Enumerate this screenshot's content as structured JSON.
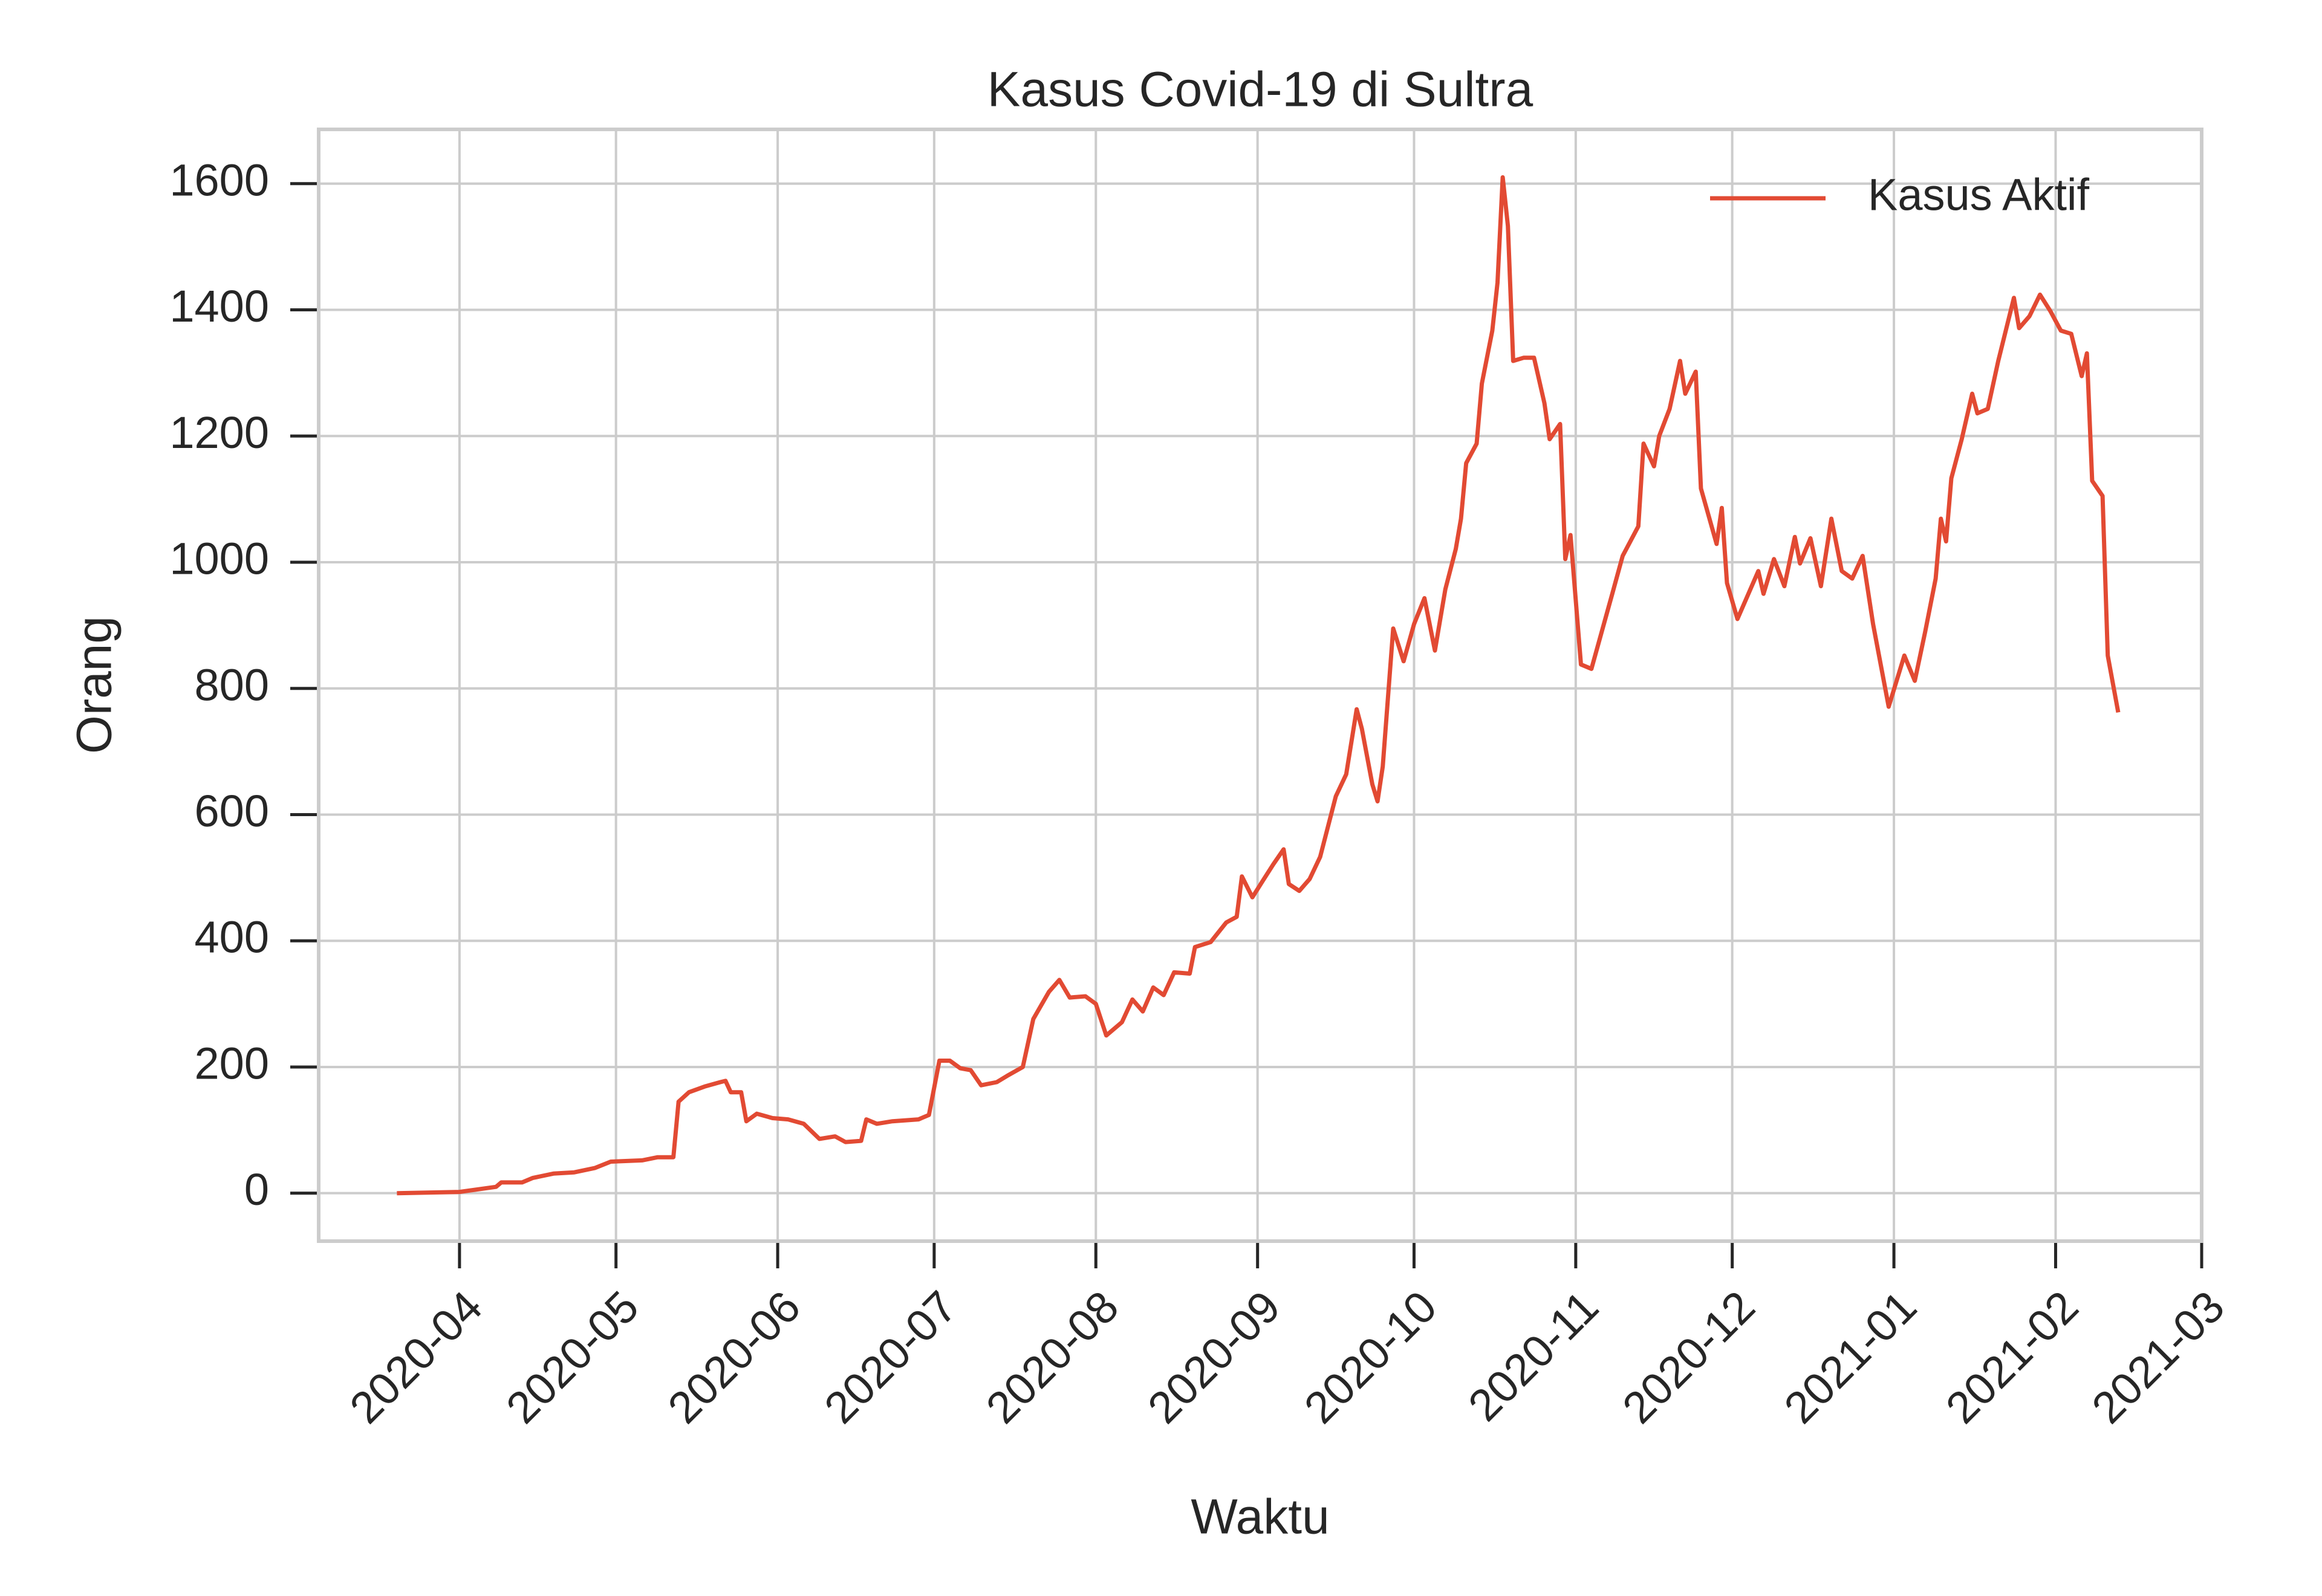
{
  "chart_data": {
    "type": "line",
    "title": "Kasus Covid-19 di Sultra",
    "xlabel": "Waktu",
    "ylabel": "Orang",
    "x": [
      "2020-03-20",
      "2020-04-01",
      "2020-04-08",
      "2020-04-09",
      "2020-04-13",
      "2020-04-15",
      "2020-04-19",
      "2020-04-23",
      "2020-04-27",
      "2020-04-30",
      "2020-05-06",
      "2020-05-09",
      "2020-05-12",
      "2020-05-13",
      "2020-05-15",
      "2020-05-18",
      "2020-05-21",
      "2020-05-22",
      "2020-05-23",
      "2020-05-25",
      "2020-05-26",
      "2020-05-28",
      "2020-05-31",
      "2020-06-03",
      "2020-06-06",
      "2020-06-09",
      "2020-06-12",
      "2020-06-14",
      "2020-06-17",
      "2020-06-18",
      "2020-06-20",
      "2020-06-23",
      "2020-06-28",
      "2020-06-30",
      "2020-07-02",
      "2020-07-04",
      "2020-07-06",
      "2020-07-08",
      "2020-07-10",
      "2020-07-13",
      "2020-07-15",
      "2020-07-18",
      "2020-07-20",
      "2020-07-23",
      "2020-07-25",
      "2020-07-27",
      "2020-07-30",
      "2020-08-01",
      "2020-08-03",
      "2020-08-06",
      "2020-08-08",
      "2020-08-10",
      "2020-08-12",
      "2020-08-14",
      "2020-08-16",
      "2020-08-19",
      "2020-08-20",
      "2020-08-23",
      "2020-08-26",
      "2020-08-28",
      "2020-08-29",
      "2020-08-31",
      "2020-09-02",
      "2020-09-04",
      "2020-09-06",
      "2020-09-07",
      "2020-09-09",
      "2020-09-11",
      "2020-09-13",
      "2020-09-16",
      "2020-09-18",
      "2020-09-20",
      "2020-09-21",
      "2020-09-23",
      "2020-09-24",
      "2020-09-25",
      "2020-09-27",
      "2020-09-29",
      "2020-10-01",
      "2020-10-03",
      "2020-10-05",
      "2020-10-07",
      "2020-10-09",
      "2020-10-10",
      "2020-10-11",
      "2020-10-13",
      "2020-10-14",
      "2020-10-16",
      "2020-10-17",
      "2020-10-18",
      "2020-10-19",
      "2020-10-20",
      "2020-10-22",
      "2020-10-24",
      "2020-10-26",
      "2020-10-27",
      "2020-10-29",
      "2020-10-30",
      "2020-10-31",
      "2020-11-02",
      "2020-11-04",
      "2020-11-08",
      "2020-11-10",
      "2020-11-13",
      "2020-11-14",
      "2020-11-16",
      "2020-11-17",
      "2020-11-19",
      "2020-11-21",
      "2020-11-22",
      "2020-11-24",
      "2020-11-25",
      "2020-11-28",
      "2020-11-29",
      "2020-11-30",
      "2020-12-02",
      "2020-12-06",
      "2020-12-07",
      "2020-12-09",
      "2020-12-11",
      "2020-12-13",
      "2020-12-14",
      "2020-12-16",
      "2020-12-18",
      "2020-12-20",
      "2020-12-22",
      "2020-12-24",
      "2020-12-26",
      "2020-12-28",
      "2020-12-31",
      "2021-01-03",
      "2021-01-05",
      "2021-01-07",
      "2021-01-09",
      "2021-01-10",
      "2021-01-11",
      "2021-01-12",
      "2021-01-14",
      "2021-01-16",
      "2021-01-17",
      "2021-01-19",
      "2021-01-21",
      "2021-01-24",
      "2021-01-25",
      "2021-01-27",
      "2021-01-29",
      "2021-01-31",
      "2021-02-02",
      "2021-02-04",
      "2021-02-06",
      "2021-02-07",
      "2021-02-08",
      "2021-02-10",
      "2021-02-11",
      "2021-02-13"
    ],
    "series": [
      {
        "name": "Kasus Aktif",
        "color": "#e24a33",
        "values": [
          0,
          2,
          10,
          17,
          17,
          24,
          31,
          33,
          40,
          50,
          52,
          57,
          57,
          145,
          160,
          169,
          176,
          178,
          160,
          160,
          114,
          126,
          119,
          117,
          110,
          86,
          90,
          81,
          83,
          117,
          110,
          114,
          117,
          124,
          210,
          210,
          198,
          195,
          171,
          176,
          186,
          200,
          276,
          319,
          338,
          310,
          312,
          300,
          250,
          271,
          307,
          288,
          326,
          314,
          350,
          348,
          390,
          398,
          429,
          438,
          502,
          469,
          495,
          521,
          545,
          490,
          479,
          498,
          533,
          629,
          664,
          767,
          736,
          648,
          621,
          676,
          895,
          843,
          902,
          943,
          860,
          957,
          1021,
          1069,
          1157,
          1188,
          1283,
          1367,
          1443,
          1610,
          1533,
          1319,
          1324,
          1324,
          1252,
          1195,
          1219,
          1005,
          1043,
          838,
          831,
          950,
          1010,
          1057,
          1188,
          1152,
          1200,
          1243,
          1319,
          1267,
          1302,
          1117,
          1029,
          1086,
          967,
          910,
          986,
          950,
          1005,
          962,
          1040,
          998,
          1038,
          962,
          1069,
          986,
          974,
          1010,
          902,
          771,
          852,
          812,
          890,
          974,
          1069,
          1033,
          1133,
          1195,
          1267,
          1236,
          1243,
          1319,
          1419,
          1371,
          1390,
          1424,
          1398,
          1367,
          1362,
          1295,
          1331,
          1129,
          1105,
          852,
          762
        ]
      }
    ],
    "xlim": [
      "2020-03-05",
      "2021-03-01"
    ],
    "xticks": [
      "2020-04",
      "2020-05",
      "2020-06",
      "2020-07",
      "2020-08",
      "2020-09",
      "2020-10",
      "2020-11",
      "2020-12",
      "2021-01",
      "2021-02",
      "2021-03"
    ],
    "ylim": [
      -76,
      1686
    ],
    "yticks": [
      0,
      200,
      400,
      600,
      800,
      1000,
      1200,
      1400,
      1600
    ],
    "grid": true,
    "legend": "upper right"
  }
}
